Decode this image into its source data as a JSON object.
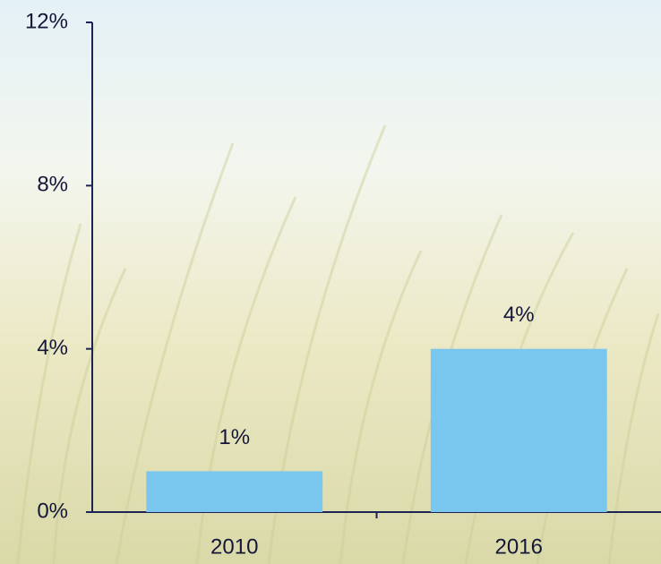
{
  "chart_data": {
    "type": "bar",
    "categories": [
      "2010",
      "2016"
    ],
    "values": [
      1,
      4
    ],
    "value_labels": [
      "1%",
      "4%"
    ],
    "color": "#79c7ef",
    "ylim": [
      0,
      12
    ],
    "yticks": [
      {
        "value": 0,
        "label": "0%"
      },
      {
        "value": 4,
        "label": "4%"
      },
      {
        "value": 8,
        "label": "8%"
      },
      {
        "value": 12,
        "label": "12%"
      }
    ],
    "grid": false
  }
}
